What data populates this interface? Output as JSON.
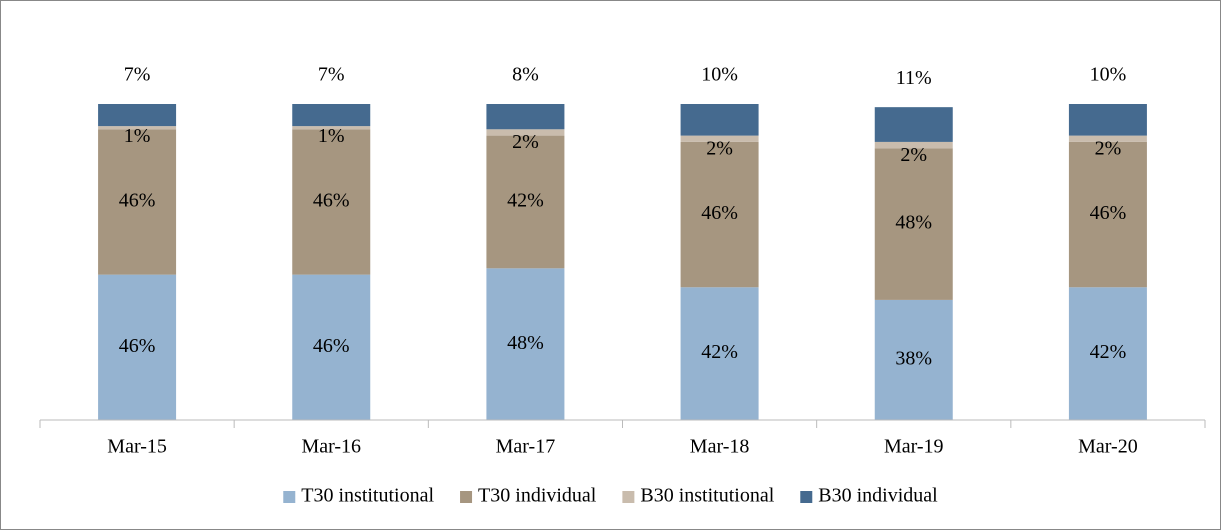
{
  "chart_data": {
    "type": "stacked_bar",
    "categories": [
      "Mar-15",
      "Mar-16",
      "Mar-17",
      "Mar-18",
      "Mar-19",
      "Mar-20"
    ],
    "series": [
      {
        "name": "T30 institutional",
        "color": "#95b3d0",
        "values": [
          46,
          46,
          48,
          42,
          38,
          42
        ],
        "value_labels": [
          "46%",
          "46%",
          "48%",
          "42%",
          "38%",
          "42%"
        ]
      },
      {
        "name": "T30 individual",
        "color": "#a69680",
        "values": [
          46,
          46,
          42,
          46,
          48,
          46
        ],
        "value_labels": [
          "46%",
          "46%",
          "42%",
          "46%",
          "48%",
          "46%"
        ]
      },
      {
        "name": "B30 institutional",
        "color": "#c9bcad",
        "values": [
          1,
          1,
          2,
          2,
          2,
          2
        ],
        "value_labels": [
          "1%",
          "1%",
          "2%",
          "2%",
          "2%",
          "2%"
        ]
      },
      {
        "name": "B30 individual",
        "color": "#456a8f",
        "values": [
          7,
          7,
          8,
          10,
          11,
          10
        ],
        "value_labels": [
          "7%",
          "7%",
          "8%",
          "10%",
          "11%",
          "10%"
        ]
      }
    ],
    "legend": "bottom"
  }
}
